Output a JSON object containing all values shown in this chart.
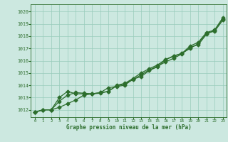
{
  "title": "Graphe pression niveau de la mer (hPa)",
  "bg_color": "#cce8e0",
  "grid_color": "#99ccbb",
  "line_color": "#2d6e2d",
  "xlim": [
    -0.5,
    23.5
  ],
  "ylim": [
    1011.4,
    1020.6
  ],
  "yticks": [
    1012,
    1013,
    1014,
    1015,
    1016,
    1017,
    1018,
    1019,
    1020
  ],
  "xticks": [
    0,
    1,
    2,
    3,
    4,
    5,
    6,
    7,
    8,
    9,
    10,
    11,
    12,
    13,
    14,
    15,
    16,
    17,
    18,
    19,
    20,
    21,
    22,
    23
  ],
  "line1_upper": [
    1011.8,
    1012.0,
    1012.0,
    1012.2,
    1012.5,
    1012.8,
    1013.2,
    1013.3,
    1013.4,
    1013.8,
    1013.9,
    1014.0,
    1014.5,
    1014.7,
    1015.2,
    1015.5,
    1016.1,
    1016.4,
    1016.6,
    1017.2,
    1017.5,
    1018.3,
    1018.5,
    1019.4
  ],
  "line2_mid": [
    1011.8,
    1012.0,
    1012.0,
    1012.7,
    1013.2,
    1013.4,
    1013.35,
    1013.3,
    1013.4,
    1013.5,
    1014.0,
    1014.15,
    1014.55,
    1015.0,
    1015.35,
    1015.65,
    1016.1,
    1016.35,
    1016.6,
    1017.0,
    1017.4,
    1018.25,
    1018.4,
    1019.3
  ],
  "line3_lower": [
    1011.8,
    1012.0,
    1012.0,
    1013.0,
    1013.5,
    1013.3,
    1013.3,
    1013.3,
    1013.35,
    1013.5,
    1013.95,
    1014.1,
    1014.45,
    1014.85,
    1015.25,
    1015.55,
    1015.9,
    1016.2,
    1016.55,
    1017.1,
    1017.3,
    1018.15,
    1018.5,
    1019.5
  ]
}
